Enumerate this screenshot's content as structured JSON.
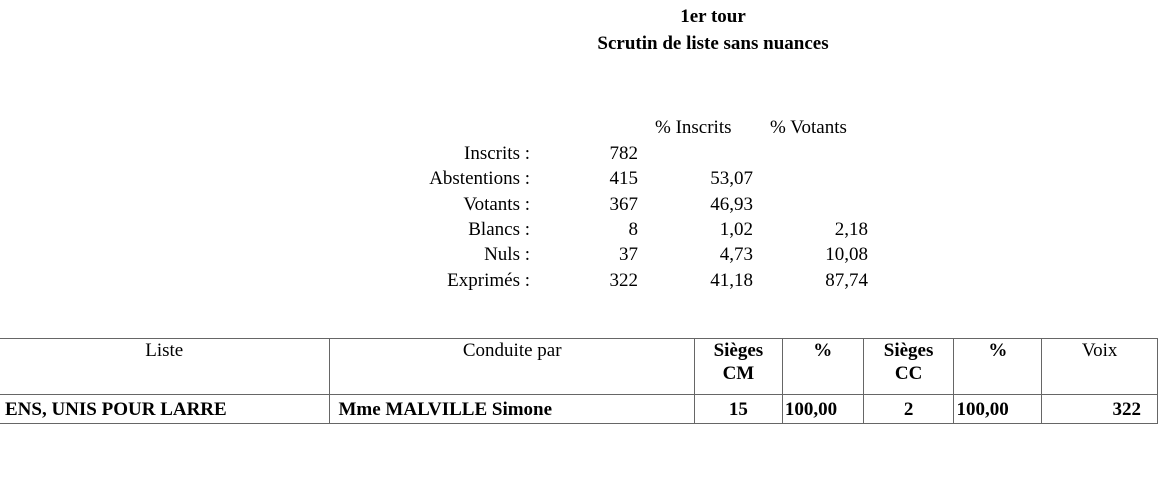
{
  "header": {
    "round": "1er tour",
    "subtitle": "Scrutin de liste sans nuances"
  },
  "stats": {
    "columns": [
      "% Inscrits",
      "% Votants"
    ],
    "rows": [
      {
        "label": "Inscrits :",
        "count": "782"
      },
      {
        "label": "Abstentions :",
        "count": "415",
        "pct_inscrits": "53,07"
      },
      {
        "label": "Votants :",
        "count": "367",
        "pct_inscrits": "46,93"
      },
      {
        "label": "Blancs :",
        "count": "8",
        "pct_inscrits": "1,02",
        "pct_votants": "2,18"
      },
      {
        "label": "Nuls :",
        "count": "37",
        "pct_inscrits": "4,73",
        "pct_votants": "10,08"
      },
      {
        "label": "Exprimés :",
        "count": "322",
        "pct_inscrits": "41,18",
        "pct_votants": "87,74"
      }
    ]
  },
  "table": {
    "header": [
      "Liste",
      "Conduite par",
      "Sièges\nCM",
      "%",
      "Sièges\nCC",
      "%",
      "Voix"
    ],
    "rows": [
      [
        "ENS, UNIS POUR LARRE",
        "Mme MALVILLE Simone",
        "15",
        "100,00",
        "2",
        "100,00",
        "322"
      ]
    ]
  }
}
